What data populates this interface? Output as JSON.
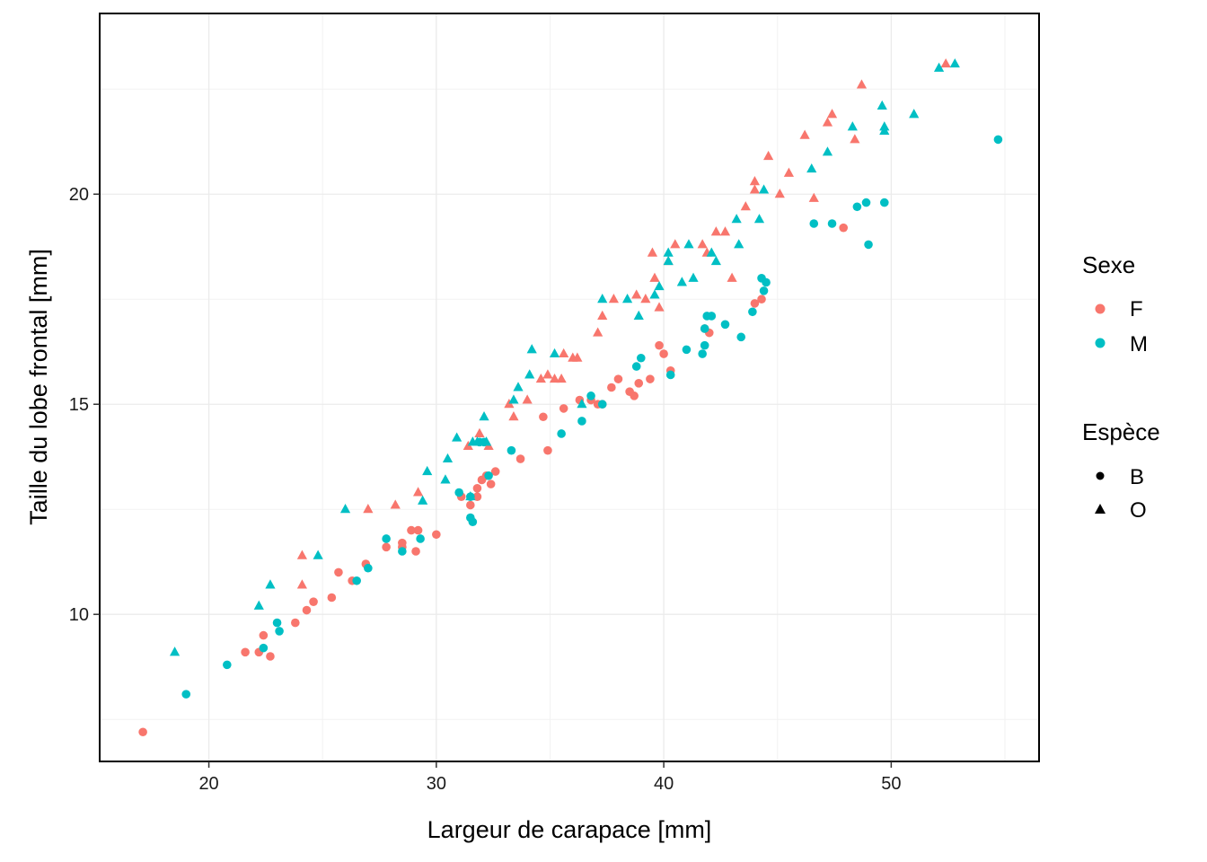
{
  "chart_data": {
    "type": "scatter",
    "xlabel": "Largeur de carapace  [mm]",
    "ylabel": "Taille du lobe frontal  [mm]",
    "xlim": [
      15.2,
      56.5
    ],
    "ylim": [
      6.5,
      24.3
    ],
    "xticks": [
      20,
      30,
      40,
      50
    ],
    "yticks": [
      10,
      15,
      20
    ],
    "grid": true,
    "legend_placement": "right",
    "legends": [
      {
        "title": "Sexe",
        "aesthetic": "color",
        "entries": [
          {
            "label": "F",
            "color": "#F8766D"
          },
          {
            "label": "M",
            "color": "#00BFC4"
          }
        ]
      },
      {
        "title": "Espèce",
        "aesthetic": "shape",
        "entries": [
          {
            "label": "B",
            "shape": "circle"
          },
          {
            "label": "O",
            "shape": "triangle"
          }
        ]
      }
    ],
    "series": [
      {
        "name": "F",
        "group": "B",
        "color": "#F8766D",
        "shape": "circle",
        "points": [
          [
            17.1,
            7.2
          ],
          [
            21.6,
            9.1
          ],
          [
            22.2,
            9.1
          ],
          [
            22.4,
            9.5
          ],
          [
            22.7,
            9.0
          ],
          [
            23.8,
            9.8
          ],
          [
            24.3,
            10.1
          ],
          [
            24.6,
            10.3
          ],
          [
            25.4,
            10.4
          ],
          [
            25.7,
            11.0
          ],
          [
            26.3,
            10.8
          ],
          [
            26.9,
            11.2
          ],
          [
            27.8,
            11.6
          ],
          [
            28.5,
            11.6
          ],
          [
            28.5,
            11.7
          ],
          [
            28.9,
            12.0
          ],
          [
            29.2,
            12.0
          ],
          [
            29.1,
            11.5
          ],
          [
            30.0,
            11.9
          ],
          [
            31.1,
            12.8
          ],
          [
            31.5,
            12.6
          ],
          [
            31.8,
            12.8
          ],
          [
            31.8,
            13.0
          ],
          [
            32.0,
            13.2
          ],
          [
            32.2,
            13.3
          ],
          [
            32.4,
            13.1
          ],
          [
            32.6,
            13.4
          ],
          [
            33.7,
            13.7
          ],
          [
            34.7,
            14.7
          ],
          [
            34.9,
            13.9
          ],
          [
            35.6,
            14.9
          ],
          [
            36.3,
            15.1
          ],
          [
            36.8,
            15.1
          ],
          [
            37.1,
            15.0
          ],
          [
            37.3,
            15.0
          ],
          [
            37.7,
            15.4
          ],
          [
            38.0,
            15.6
          ],
          [
            38.5,
            15.3
          ],
          [
            38.7,
            15.2
          ],
          [
            38.9,
            15.5
          ],
          [
            39.4,
            15.6
          ],
          [
            39.8,
            16.4
          ],
          [
            40.0,
            16.2
          ],
          [
            40.3,
            15.8
          ],
          [
            41.8,
            16.8
          ],
          [
            42.0,
            16.7
          ],
          [
            44.0,
            17.4
          ],
          [
            44.3,
            17.5
          ],
          [
            47.9,
            19.2
          ]
        ]
      },
      {
        "name": "M",
        "group": "B",
        "color": "#00BFC4",
        "shape": "circle",
        "points": [
          [
            19.0,
            8.1
          ],
          [
            20.8,
            8.8
          ],
          [
            22.4,
            9.2
          ],
          [
            23.0,
            9.8
          ],
          [
            23.1,
            9.6
          ],
          [
            26.5,
            10.8
          ],
          [
            27.0,
            11.1
          ],
          [
            27.8,
            11.8
          ],
          [
            28.5,
            11.5
          ],
          [
            29.3,
            11.8
          ],
          [
            31.0,
            12.9
          ],
          [
            31.5,
            12.8
          ],
          [
            31.5,
            12.3
          ],
          [
            31.6,
            12.2
          ],
          [
            31.9,
            14.1
          ],
          [
            32.1,
            14.1
          ],
          [
            32.3,
            13.3
          ],
          [
            33.3,
            13.9
          ],
          [
            35.5,
            14.3
          ],
          [
            36.4,
            14.6
          ],
          [
            36.8,
            15.2
          ],
          [
            37.3,
            15.0
          ],
          [
            38.8,
            15.9
          ],
          [
            39.0,
            16.1
          ],
          [
            40.3,
            15.7
          ],
          [
            41.0,
            16.3
          ],
          [
            41.7,
            16.2
          ],
          [
            41.8,
            16.4
          ],
          [
            41.8,
            16.8
          ],
          [
            41.9,
            17.1
          ],
          [
            42.1,
            17.1
          ],
          [
            42.7,
            16.9
          ],
          [
            43.4,
            16.6
          ],
          [
            43.9,
            17.2
          ],
          [
            44.3,
            18.0
          ],
          [
            44.4,
            17.7
          ],
          [
            44.5,
            17.9
          ],
          [
            46.6,
            19.3
          ],
          [
            47.4,
            19.3
          ],
          [
            48.5,
            19.7
          ],
          [
            48.9,
            19.8
          ],
          [
            49.0,
            18.8
          ],
          [
            49.7,
            19.8
          ],
          [
            54.7,
            21.3
          ]
        ]
      },
      {
        "name": "F",
        "group": "O",
        "color": "#F8766D",
        "shape": "triangle",
        "points": [
          [
            24.1,
            11.4
          ],
          [
            24.1,
            10.7
          ],
          [
            27.0,
            12.5
          ],
          [
            28.2,
            12.6
          ],
          [
            29.2,
            12.9
          ],
          [
            31.4,
            14.0
          ],
          [
            31.9,
            14.3
          ],
          [
            32.3,
            14.0
          ],
          [
            33.2,
            15.0
          ],
          [
            33.4,
            14.7
          ],
          [
            34.0,
            15.1
          ],
          [
            34.6,
            15.6
          ],
          [
            34.9,
            15.7
          ],
          [
            35.2,
            15.6
          ],
          [
            35.5,
            15.6
          ],
          [
            35.6,
            16.2
          ],
          [
            36.0,
            16.1
          ],
          [
            36.2,
            16.1
          ],
          [
            37.1,
            16.7
          ],
          [
            37.3,
            17.1
          ],
          [
            37.8,
            17.5
          ],
          [
            38.8,
            17.6
          ],
          [
            39.2,
            17.5
          ],
          [
            39.5,
            18.6
          ],
          [
            39.6,
            18.0
          ],
          [
            39.8,
            17.3
          ],
          [
            40.2,
            18.4
          ],
          [
            40.5,
            18.8
          ],
          [
            41.7,
            18.8
          ],
          [
            41.9,
            18.6
          ],
          [
            42.3,
            19.1
          ],
          [
            42.7,
            19.1
          ],
          [
            43.0,
            18.0
          ],
          [
            43.6,
            19.7
          ],
          [
            44.0,
            20.1
          ],
          [
            44.0,
            20.3
          ],
          [
            44.6,
            20.9
          ],
          [
            45.1,
            20.0
          ],
          [
            45.5,
            20.5
          ],
          [
            46.2,
            21.4
          ],
          [
            46.6,
            19.9
          ],
          [
            47.2,
            21.7
          ],
          [
            47.4,
            21.9
          ],
          [
            48.4,
            21.3
          ],
          [
            48.7,
            22.6
          ],
          [
            52.4,
            23.1
          ]
        ]
      },
      {
        "name": "M",
        "group": "O",
        "color": "#00BFC4",
        "shape": "triangle",
        "points": [
          [
            18.5,
            9.1
          ],
          [
            22.2,
            10.2
          ],
          [
            22.7,
            10.7
          ],
          [
            24.8,
            11.4
          ],
          [
            26.0,
            12.5
          ],
          [
            29.4,
            12.7
          ],
          [
            29.6,
            13.4
          ],
          [
            30.4,
            13.2
          ],
          [
            30.5,
            13.7
          ],
          [
            30.9,
            14.2
          ],
          [
            31.5,
            12.8
          ],
          [
            31.6,
            14.1
          ],
          [
            31.8,
            14.1
          ],
          [
            32.1,
            14.7
          ],
          [
            32.2,
            14.1
          ],
          [
            33.4,
            15.1
          ],
          [
            33.6,
            15.4
          ],
          [
            34.1,
            15.7
          ],
          [
            34.2,
            16.3
          ],
          [
            35.2,
            16.2
          ],
          [
            36.4,
            15.0
          ],
          [
            37.3,
            17.5
          ],
          [
            38.4,
            17.5
          ],
          [
            38.9,
            17.1
          ],
          [
            39.6,
            17.6
          ],
          [
            39.8,
            17.8
          ],
          [
            40.2,
            18.4
          ],
          [
            40.2,
            18.6
          ],
          [
            40.8,
            17.9
          ],
          [
            41.1,
            18.8
          ],
          [
            41.3,
            18.0
          ],
          [
            42.1,
            18.6
          ],
          [
            42.3,
            18.4
          ],
          [
            43.2,
            19.4
          ],
          [
            43.3,
            18.8
          ],
          [
            44.2,
            19.4
          ],
          [
            44.4,
            20.1
          ],
          [
            46.5,
            20.6
          ],
          [
            47.2,
            21.0
          ],
          [
            48.3,
            21.6
          ],
          [
            49.6,
            22.1
          ],
          [
            49.7,
            21.6
          ],
          [
            49.7,
            21.5
          ],
          [
            51.0,
            21.9
          ],
          [
            52.1,
            23.0
          ],
          [
            52.8,
            23.1
          ]
        ]
      }
    ]
  }
}
